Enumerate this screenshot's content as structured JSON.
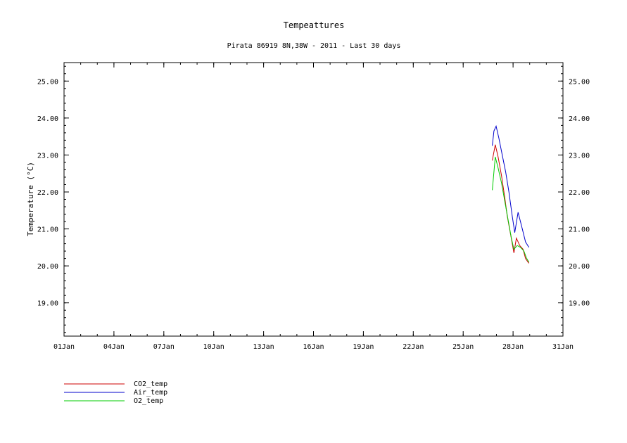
{
  "chart_data": {
    "type": "line",
    "title": "Tempeattures",
    "subtitle": "Pirata 86919 8N,38W - 2011 - Last 30 days",
    "ylabel": "Temperature (°C)",
    "xlabel": "",
    "x_ticks": [
      "01Jan",
      "04Jan",
      "07Jan",
      "10Jan",
      "13Jan",
      "16Jan",
      "19Jan",
      "22Jan",
      "25Jan",
      "28Jan",
      "31Jan"
    ],
    "y_ticks": [
      "19.00",
      "20.00",
      "21.00",
      "22.00",
      "23.00",
      "24.00",
      "25.00"
    ],
    "xlim": [
      1,
      31
    ],
    "ylim": [
      18.1,
      25.5
    ],
    "grid": false,
    "legend_position": "bottom-left",
    "series": [
      {
        "name": "CO2_temp",
        "color": "#cc0000",
        "x": [
          26.75,
          26.93,
          27.1,
          27.3,
          27.5,
          27.65,
          27.85,
          28.05,
          28.2,
          28.4,
          28.6,
          28.75,
          28.95
        ],
        "y": [
          22.85,
          23.28,
          22.95,
          22.45,
          21.85,
          21.35,
          20.85,
          20.35,
          20.75,
          20.55,
          20.45,
          20.2,
          20.07
        ]
      },
      {
        "name": "Air_temp",
        "color": "#0000cc",
        "x": [
          26.75,
          26.85,
          26.98,
          27.15,
          27.35,
          27.55,
          27.75,
          27.95,
          28.1,
          28.3,
          28.5,
          28.75,
          28.95
        ],
        "y": [
          23.25,
          23.65,
          23.78,
          23.45,
          23.0,
          22.55,
          22.0,
          21.35,
          20.9,
          21.45,
          21.1,
          20.65,
          20.5
        ]
      },
      {
        "name": "O2_temp",
        "color": "#00cc00",
        "x": [
          26.75,
          26.93,
          27.1,
          27.3,
          27.5,
          27.7,
          27.9,
          28.05,
          28.25,
          28.45,
          28.65,
          28.8,
          28.95
        ],
        "y": [
          22.05,
          22.95,
          22.65,
          22.25,
          21.75,
          21.25,
          20.75,
          20.45,
          20.55,
          20.5,
          20.4,
          20.22,
          20.1
        ]
      }
    ]
  }
}
